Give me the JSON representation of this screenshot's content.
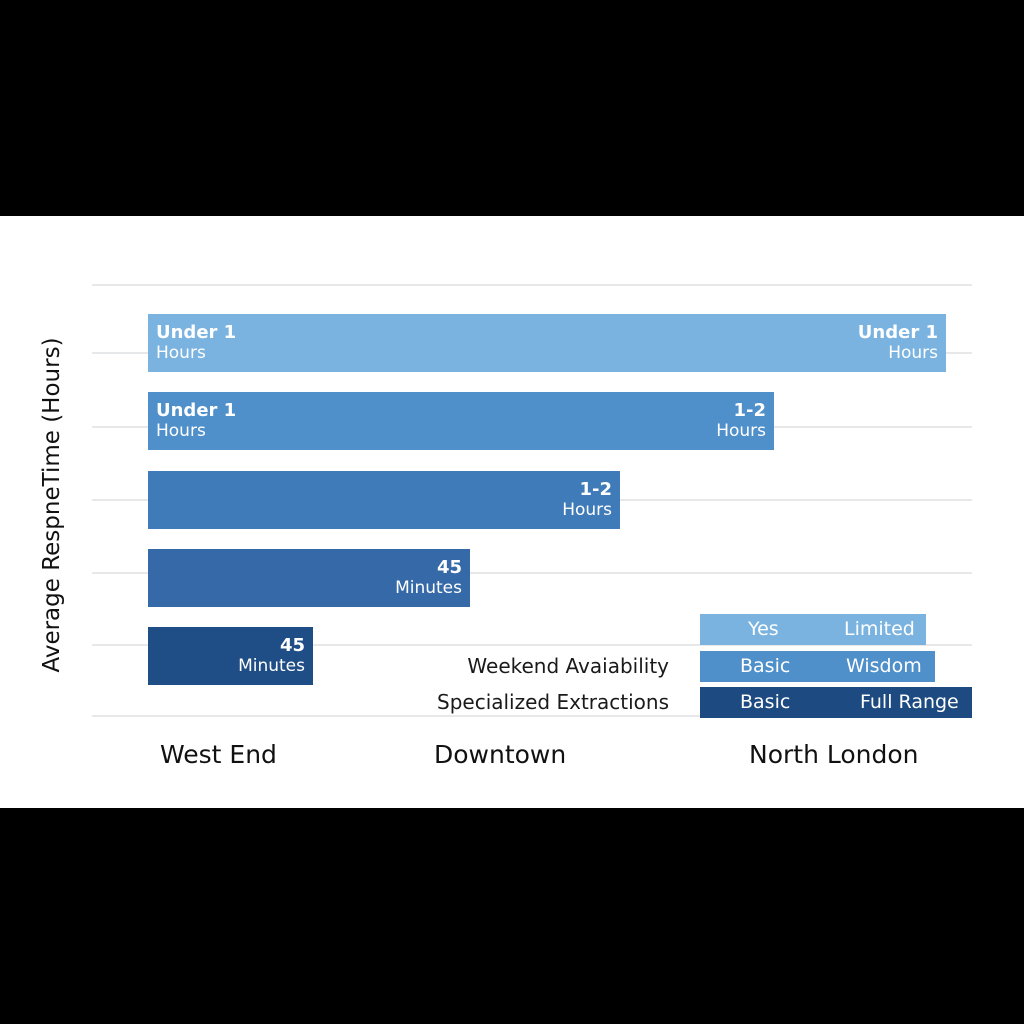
{
  "chart_data": {
    "type": "bar",
    "orientation": "horizontal",
    "ylabel": "Average RespneTime (Hours)",
    "categories": [
      "West End",
      "Downtown",
      "North London"
    ],
    "bars": [
      {
        "left_value": "Under 1",
        "left_unit": "Hours",
        "right_value": "Under 1",
        "right_unit": "Hours",
        "color": "#7ab3e0"
      },
      {
        "left_value": "Under 1",
        "left_unit": "Hours",
        "right_value": "1-2",
        "right_unit": "Hours",
        "color": "#4f8fca"
      },
      {
        "left_value": "",
        "left_unit": "",
        "right_value": "1-2",
        "right_unit": "Hours",
        "color": "#3f7bb8"
      },
      {
        "left_value": "",
        "left_unit": "",
        "right_value": "45",
        "right_unit": "Minutes",
        "color": "#3669a8"
      },
      {
        "left_value": "",
        "left_unit": "",
        "right_value": "45",
        "right_unit": "Minutes",
        "color": "#1f4d85"
      }
    ],
    "table": [
      {
        "label": "",
        "cells": [
          "Yes",
          "Limited"
        ],
        "color": "#7ab3e0"
      },
      {
        "label": "Weekend Avaiability",
        "cells": [
          "Basic",
          "Wisdom"
        ],
        "color": "#4f8fca"
      },
      {
        "label": "Specialized Extractions",
        "cells": [
          "Basic",
          "Full Range"
        ],
        "color": "#1d4a80"
      }
    ],
    "grid": true
  }
}
